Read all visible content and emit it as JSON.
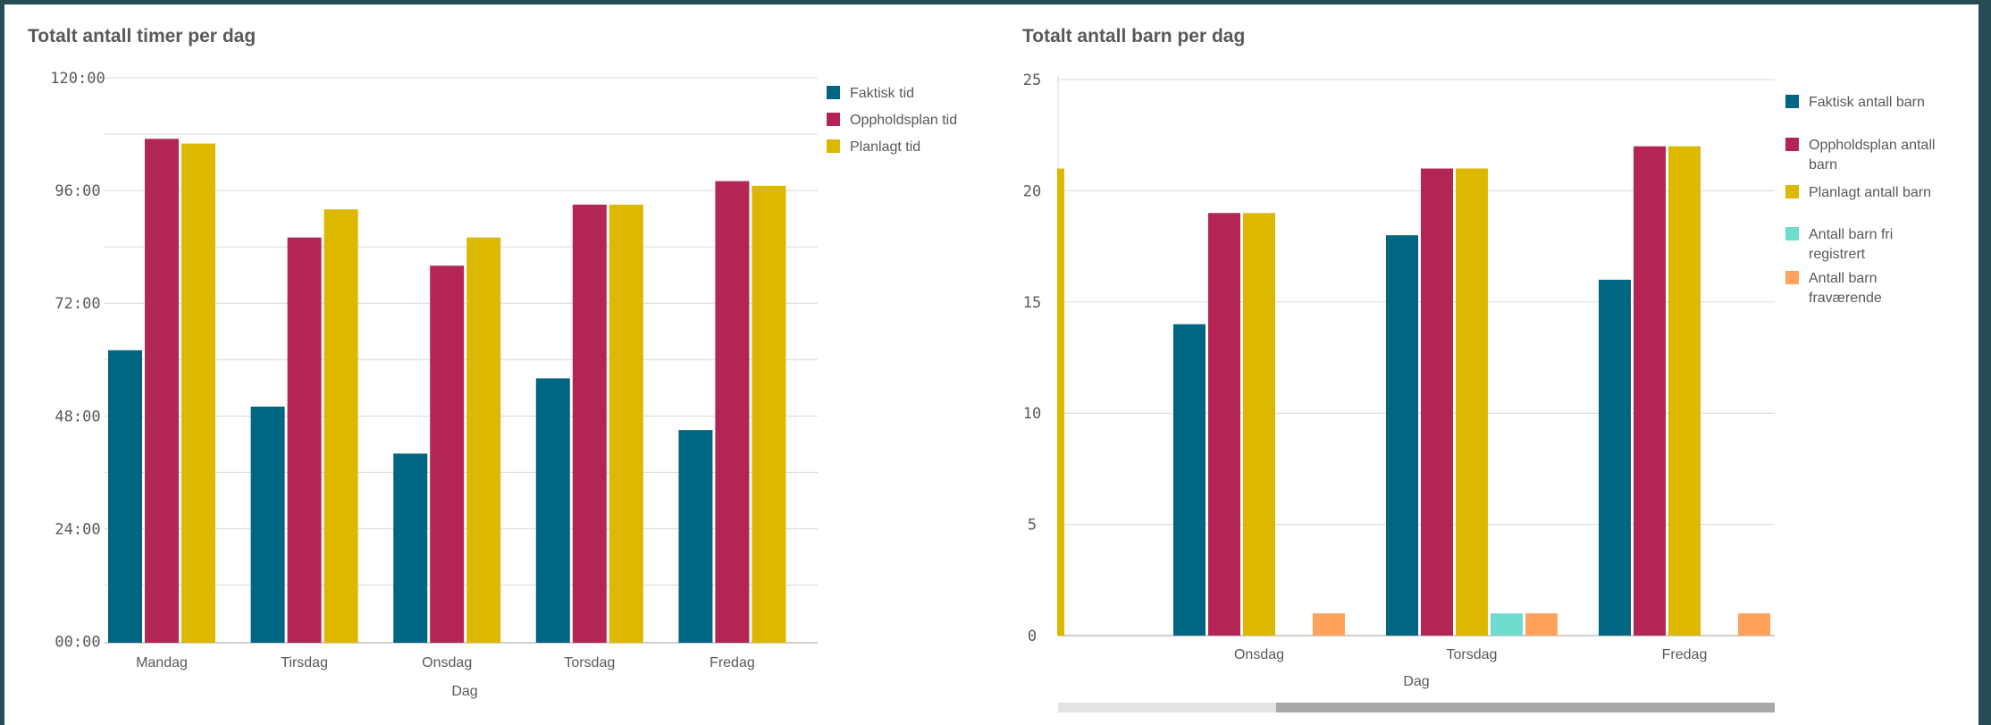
{
  "chart_data": [
    {
      "type": "bar",
      "title": "Totalt antall timer per dag",
      "xlabel": "Dag",
      "ylabel": "",
      "categories": [
        "Mandag",
        "Tirsdag",
        "Onsdag",
        "Torsdag",
        "Fredag"
      ],
      "y_ticks": [
        "00:00",
        "24:00",
        "48:00",
        "72:00",
        "96:00",
        "120:00"
      ],
      "ylim_hours": [
        0,
        120
      ],
      "grid": true,
      "legend_position": "top-right",
      "series": [
        {
          "name": "Faktisk tid",
          "color": "#006580",
          "values": [
            62,
            50,
            40,
            56,
            45
          ]
        },
        {
          "name": "Oppholdsplan tid",
          "color": "#b32653",
          "values": [
            107,
            86,
            80,
            93,
            98
          ]
        },
        {
          "name": "Planlagt tid",
          "color": "#dcb800",
          "values": [
            106,
            92,
            86,
            93,
            97
          ]
        }
      ]
    },
    {
      "type": "bar",
      "title": "Totalt antall barn per dag",
      "xlabel": "Dag",
      "ylabel": "",
      "categories": [
        "Onsdag",
        "Torsdag",
        "Fredag"
      ],
      "y_ticks": [
        "0",
        "5",
        "10",
        "15",
        "20",
        "25"
      ],
      "ylim": [
        0,
        25
      ],
      "grid": true,
      "legend_position": "top-right",
      "scrollbar": true,
      "partial_bar_left": {
        "series": "Planlagt antall barn",
        "value": 21
      },
      "series": [
        {
          "name": "Faktisk antall barn",
          "color": "#006580",
          "values": [
            14,
            18,
            16
          ]
        },
        {
          "name": "Oppholdsplan antall barn",
          "color": "#b32653",
          "values": [
            19,
            21,
            22
          ]
        },
        {
          "name": "Planlagt antall barn",
          "color": "#dcb800",
          "values": [
            19,
            21,
            22
          ]
        },
        {
          "name": "Antall barn fri registrert",
          "color": "#6fdcd0",
          "values": [
            0,
            1,
            0
          ]
        },
        {
          "name": "Antall barn fraværende",
          "color": "#ffa35c",
          "values": [
            1,
            1,
            1
          ]
        }
      ]
    }
  ]
}
